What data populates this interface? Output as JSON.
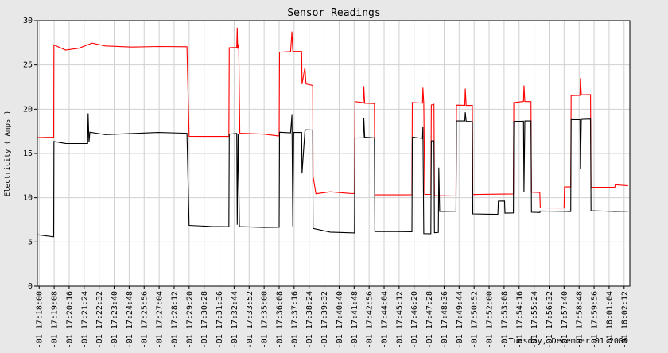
{
  "chart_data": {
    "type": "line",
    "title": "Sensor Readings",
    "ylabel": "Electricity ( Amps )",
    "xlabel": "",
    "ylim": [
      0,
      30
    ],
    "yticks": [
      0,
      5,
      10,
      15,
      20,
      25,
      30
    ],
    "grid": true,
    "colors": {
      "background": "#e8e8e8",
      "plot": "#ffffff",
      "grid": "#d0d0d0",
      "series_red": "#ff0000",
      "series_black": "#000000"
    },
    "x_ticks": [
      "-01 17:18:00",
      "-01 17:19:08",
      "-01 17:20:16",
      "-01 17:21:24",
      "-01 17:22:32",
      "-01 17:23:40",
      "-01 17:24:48",
      "-01 17:25:56",
      "-01 17:27:04",
      "-01 17:28:12",
      "-01 17:29:20",
      "-01 17:30:28",
      "-01 17:31:36",
      "-01 17:32:44",
      "-01 17:33:52",
      "-01 17:35:00",
      "-01 17:36:08",
      "-01 17:37:16",
      "-01 17:38:24",
      "-01 17:39:32",
      "-01 17:40:40",
      "-01 17:41:48",
      "-01 17:42:56",
      "-01 17:44:04",
      "-01 17:45:12",
      "-01 17:46:20",
      "-01 17:47:28",
      "-01 17:48:36",
      "-01 17:49:44",
      "-01 17:50:52",
      "-01 17:52:00",
      "-01 17:53:08",
      "-01 17:54:16",
      "-01 17:55:24",
      "-01 17:56:32",
      "-01 17:57:40",
      "-01 17:58:48",
      "-01 17:59:56",
      "-01 18:01:04",
      "-01 18:02:12"
    ],
    "series": [
      {
        "color": "#ff0000",
        "points": [
          [
            "17:17:52",
            16.8
          ],
          [
            "17:19:06",
            16.8
          ],
          [
            "17:19:07",
            27.2
          ],
          [
            "17:20:00",
            26.6
          ],
          [
            "17:21:00",
            26.8
          ],
          [
            "17:22:00",
            27.4
          ],
          [
            "17:23:00",
            27.1
          ],
          [
            "17:25:00",
            27.0
          ],
          [
            "17:27:00",
            27.1
          ],
          [
            "17:29:10",
            27.1
          ],
          [
            "17:29:20",
            17.0
          ],
          [
            "17:31:00",
            17.0
          ],
          [
            "17:32:20",
            17.0
          ],
          [
            "17:32:22",
            27.0
          ],
          [
            "17:32:56",
            27.0
          ],
          [
            "17:32:58",
            29.2
          ],
          [
            "17:33:00",
            26.8
          ],
          [
            "17:33:05",
            27.3
          ],
          [
            "17:33:10",
            17.2
          ],
          [
            "17:35:00",
            17.1
          ],
          [
            "17:36:08",
            16.9
          ],
          [
            "17:36:10",
            26.4
          ],
          [
            "17:37:00",
            26.5
          ],
          [
            "17:37:06",
            28.8
          ],
          [
            "17:37:10",
            26.6
          ],
          [
            "17:37:50",
            26.6
          ],
          [
            "17:37:52",
            22.9
          ],
          [
            "17:38:05",
            24.8
          ],
          [
            "17:38:10",
            22.9
          ],
          [
            "17:38:40",
            22.7
          ],
          [
            "17:38:42",
            12.4
          ],
          [
            "17:38:55",
            10.4
          ],
          [
            "17:40:00",
            10.6
          ],
          [
            "17:41:30",
            10.4
          ],
          [
            "17:41:50",
            10.4
          ],
          [
            "17:41:52",
            20.8
          ],
          [
            "17:42:30",
            20.7
          ],
          [
            "17:42:32",
            22.6
          ],
          [
            "17:42:36",
            20.7
          ],
          [
            "17:43:20",
            20.7
          ],
          [
            "17:43:22",
            10.4
          ],
          [
            "17:45:00",
            10.4
          ],
          [
            "17:46:10",
            10.4
          ],
          [
            "17:46:12",
            20.8
          ],
          [
            "17:46:58",
            20.7
          ],
          [
            "17:47:00",
            22.4
          ],
          [
            "17:47:04",
            20.6
          ],
          [
            "17:47:08",
            10.3
          ],
          [
            "17:47:36",
            10.3
          ],
          [
            "17:47:38",
            20.4
          ],
          [
            "17:47:50",
            20.5
          ],
          [
            "17:47:52",
            10.2
          ],
          [
            "17:49:30",
            10.2
          ],
          [
            "17:49:32",
            20.5
          ],
          [
            "17:50:10",
            20.5
          ],
          [
            "17:50:12",
            22.4
          ],
          [
            "17:50:16",
            20.5
          ],
          [
            "17:50:44",
            20.5
          ],
          [
            "17:50:46",
            10.4
          ],
          [
            "17:52:00",
            10.4
          ],
          [
            "17:53:50",
            10.4
          ],
          [
            "17:53:52",
            20.7
          ],
          [
            "17:54:36",
            20.8
          ],
          [
            "17:54:38",
            22.6
          ],
          [
            "17:54:42",
            20.8
          ],
          [
            "17:55:10",
            20.8
          ],
          [
            "17:55:12",
            10.6
          ],
          [
            "17:55:50",
            10.6
          ],
          [
            "17:55:52",
            8.9
          ],
          [
            "17:57:40",
            8.9
          ],
          [
            "17:57:42",
            11.3
          ],
          [
            "17:58:10",
            11.3
          ],
          [
            "17:58:12",
            21.6
          ],
          [
            "17:58:52",
            21.6
          ],
          [
            "17:58:54",
            23.5
          ],
          [
            "17:58:58",
            21.6
          ],
          [
            "17:59:40",
            21.6
          ],
          [
            "17:59:42",
            11.1
          ],
          [
            "18:01:30",
            11.1
          ],
          [
            "18:01:32",
            11.4
          ],
          [
            "18:02:30",
            11.3
          ]
        ]
      },
      {
        "color": "#000000",
        "points": [
          [
            "17:17:52",
            5.8
          ],
          [
            "17:19:06",
            5.6
          ],
          [
            "17:19:07",
            16.4
          ],
          [
            "17:20:00",
            16.2
          ],
          [
            "17:21:00",
            16.2
          ],
          [
            "17:21:40",
            16.2
          ],
          [
            "17:21:42",
            19.6
          ],
          [
            "17:21:46",
            16.3
          ],
          [
            "17:21:50",
            17.4
          ],
          [
            "17:23:00",
            17.1
          ],
          [
            "17:25:00",
            17.2
          ],
          [
            "17:27:00",
            17.3
          ],
          [
            "17:29:10",
            17.2
          ],
          [
            "17:29:20",
            6.8
          ],
          [
            "17:31:00",
            6.7
          ],
          [
            "17:32:20",
            6.7
          ],
          [
            "17:32:22",
            17.2
          ],
          [
            "17:32:56",
            17.3
          ],
          [
            "17:32:58",
            7.0
          ],
          [
            "17:33:02",
            17.3
          ],
          [
            "17:33:08",
            6.8
          ],
          [
            "17:35:00",
            6.7
          ],
          [
            "17:36:08",
            6.7
          ],
          [
            "17:36:10",
            17.4
          ],
          [
            "17:37:00",
            17.3
          ],
          [
            "17:37:06",
            19.3
          ],
          [
            "17:37:10",
            6.7
          ],
          [
            "17:37:14",
            17.3
          ],
          [
            "17:37:50",
            17.3
          ],
          [
            "17:37:52",
            12.7
          ],
          [
            "17:38:05",
            17.5
          ],
          [
            "17:38:10",
            17.7
          ],
          [
            "17:38:40",
            17.7
          ],
          [
            "17:38:42",
            6.6
          ],
          [
            "17:40:00",
            6.2
          ],
          [
            "17:41:50",
            6.1
          ],
          [
            "17:41:52",
            16.8
          ],
          [
            "17:42:30",
            16.8
          ],
          [
            "17:42:32",
            19.0
          ],
          [
            "17:42:36",
            16.8
          ],
          [
            "17:43:20",
            16.7
          ],
          [
            "17:43:22",
            6.1
          ],
          [
            "17:45:00",
            6.1
          ],
          [
            "17:46:10",
            6.1
          ],
          [
            "17:46:12",
            16.8
          ],
          [
            "17:46:58",
            16.7
          ],
          [
            "17:47:00",
            18.0
          ],
          [
            "17:47:04",
            6.0
          ],
          [
            "17:47:36",
            6.0
          ],
          [
            "17:47:38",
            16.5
          ],
          [
            "17:47:50",
            16.5
          ],
          [
            "17:47:52",
            6.1
          ],
          [
            "17:48:10",
            6.1
          ],
          [
            "17:48:12",
            13.4
          ],
          [
            "17:48:16",
            8.4
          ],
          [
            "17:49:30",
            8.4
          ],
          [
            "17:49:32",
            18.6
          ],
          [
            "17:50:10",
            18.6
          ],
          [
            "17:50:12",
            19.6
          ],
          [
            "17:50:16",
            18.6
          ],
          [
            "17:50:44",
            18.6
          ],
          [
            "17:50:46",
            8.2
          ],
          [
            "17:52:00",
            8.2
          ],
          [
            "17:52:40",
            8.2
          ],
          [
            "17:52:42",
            9.7
          ],
          [
            "17:53:10",
            9.7
          ],
          [
            "17:53:12",
            8.3
          ],
          [
            "17:53:50",
            8.3
          ],
          [
            "17:53:52",
            18.6
          ],
          [
            "17:54:36",
            18.6
          ],
          [
            "17:54:38",
            10.6
          ],
          [
            "17:54:42",
            18.6
          ],
          [
            "17:55:10",
            18.6
          ],
          [
            "17:55:12",
            8.3
          ],
          [
            "17:55:50",
            8.3
          ],
          [
            "17:55:52",
            8.5
          ],
          [
            "17:57:40",
            8.5
          ],
          [
            "17:58:10",
            8.5
          ],
          [
            "17:58:12",
            18.9
          ],
          [
            "17:58:52",
            18.9
          ],
          [
            "17:58:54",
            13.3
          ],
          [
            "17:58:58",
            18.9
          ],
          [
            "17:59:40",
            18.9
          ],
          [
            "17:59:42",
            8.5
          ],
          [
            "18:01:30",
            8.4
          ],
          [
            "18:02:30",
            8.4
          ]
        ]
      }
    ]
  },
  "footer": {
    "timestamp": "Tuesday, December 01 2009"
  }
}
